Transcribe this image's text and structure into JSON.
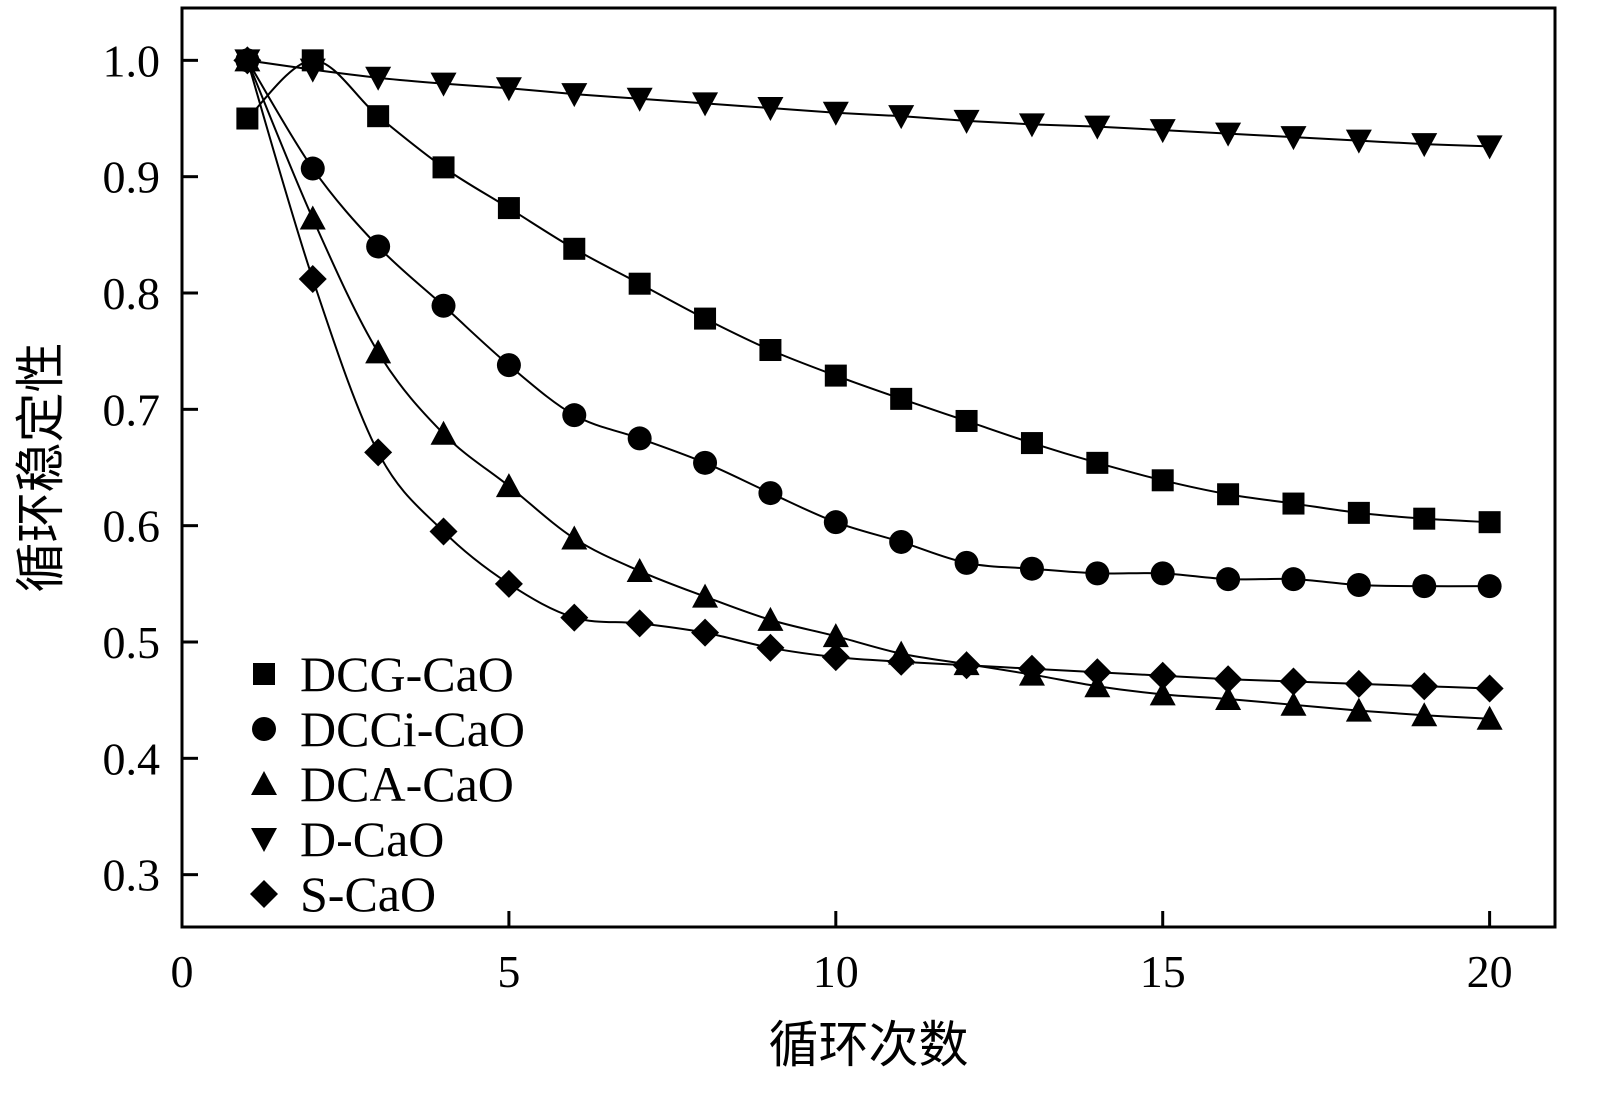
{
  "chart_data": {
    "type": "scatter",
    "xlabel": "循环次数",
    "ylabel": "循环稳定性",
    "xlim": [
      0,
      21
    ],
    "ylim": [
      0.255,
      1.045
    ],
    "xticks": [
      0,
      5,
      10,
      15,
      20
    ],
    "yticks": [
      0.3,
      0.4,
      0.5,
      0.6,
      0.7,
      0.8,
      0.9,
      1.0
    ],
    "ytick_labels": [
      "0.3",
      "0.4",
      "0.5",
      "0.6",
      "0.7",
      "0.8",
      "0.9",
      "1.0"
    ],
    "grid": false,
    "legend_position": "bottom-left",
    "x": [
      1,
      2,
      3,
      4,
      5,
      6,
      7,
      8,
      9,
      10,
      11,
      12,
      13,
      14,
      15,
      16,
      17,
      18,
      19,
      20
    ],
    "series": [
      {
        "name": "DCG-CaO",
        "marker": "square",
        "values": [
          0.95,
          1.0,
          0.952,
          0.908,
          0.873,
          0.838,
          0.808,
          0.778,
          0.751,
          0.729,
          0.709,
          0.69,
          0.671,
          0.654,
          0.639,
          0.627,
          0.619,
          0.611,
          0.606,
          0.603
        ]
      },
      {
        "name": "DCCi-CaO",
        "marker": "circle",
        "values": [
          1.0,
          0.907,
          0.84,
          0.789,
          0.738,
          0.695,
          0.675,
          0.654,
          0.628,
          0.603,
          0.586,
          0.568,
          0.563,
          0.559,
          0.559,
          0.554,
          0.554,
          0.549,
          0.548,
          0.548
        ]
      },
      {
        "name": "DCA-CaO",
        "marker": "triangle-up",
        "values": [
          1.0,
          0.864,
          0.749,
          0.679,
          0.634,
          0.589,
          0.561,
          0.539,
          0.519,
          0.505,
          0.49,
          0.481,
          0.472,
          0.462,
          0.455,
          0.451,
          0.446,
          0.441,
          0.437,
          0.434
        ]
      },
      {
        "name": "D-CaO",
        "marker": "triangle-down",
        "values": [
          1.0,
          0.992,
          0.985,
          0.98,
          0.976,
          0.971,
          0.967,
          0.963,
          0.959,
          0.955,
          0.952,
          0.948,
          0.945,
          0.943,
          0.94,
          0.937,
          0.934,
          0.931,
          0.928,
          0.926
        ]
      },
      {
        "name": "S-CaO",
        "marker": "diamond",
        "values": [
          1.0,
          0.812,
          0.663,
          0.595,
          0.55,
          0.521,
          0.516,
          0.508,
          0.495,
          0.487,
          0.483,
          0.48,
          0.477,
          0.474,
          0.471,
          0.468,
          0.466,
          0.464,
          0.462,
          0.46
        ]
      }
    ]
  }
}
